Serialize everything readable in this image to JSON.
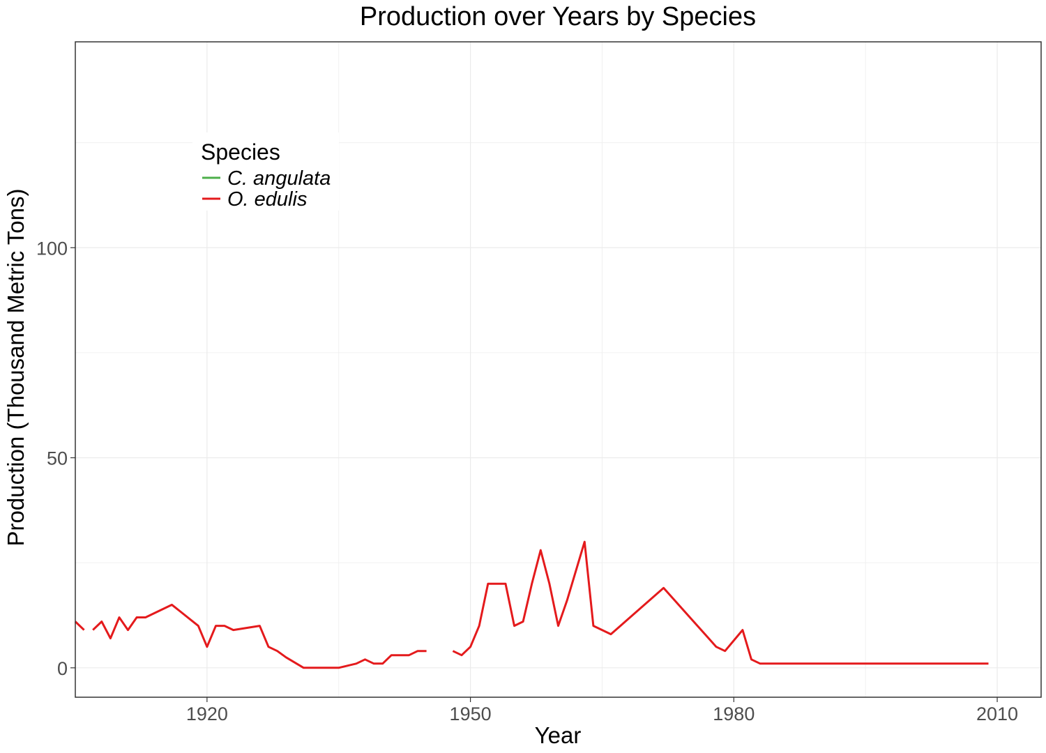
{
  "chart_data": {
    "type": "line",
    "title": "Production over Years by Species",
    "xlabel": "Year",
    "ylabel": "Production (Thousand Metric Tons)",
    "xlim": [
      1905,
      2015
    ],
    "ylim": [
      -7,
      149
    ],
    "x_ticks": [
      1920,
      1950,
      1980,
      2010
    ],
    "x_tick_labels": [
      "1920",
      "1950",
      "1980",
      "2010"
    ],
    "y_ticks": [
      0,
      50,
      100
    ],
    "y_tick_labels": [
      "0",
      "50",
      "100"
    ],
    "grid": true,
    "legend": {
      "title": "Species",
      "placement": "top-left",
      "entries": [
        {
          "label": "C. angulata",
          "color": "#4daf4a"
        },
        {
          "label": "O. edulis",
          "color": "#e41a1c"
        }
      ]
    },
    "series": [
      {
        "name": "C. angulata",
        "color": "#4daf4a",
        "segments": []
      },
      {
        "name": "O. edulis",
        "color": "#e41a1c",
        "segments": [
          [
            [
              1905,
              11
            ],
            [
              1906,
              9
            ]
          ],
          [
            [
              1907,
              9
            ],
            [
              1908,
              11
            ],
            [
              1909,
              7
            ],
            [
              1910,
              12
            ],
            [
              1911,
              9
            ],
            [
              1912,
              12
            ],
            [
              1913,
              12
            ],
            [
              1916,
              15
            ],
            [
              1919,
              10
            ],
            [
              1920,
              5
            ],
            [
              1921,
              10
            ],
            [
              1922,
              10
            ],
            [
              1923,
              9
            ],
            [
              1926,
              10
            ],
            [
              1927,
              5
            ],
            [
              1928,
              4
            ],
            [
              1929,
              2.5
            ],
            [
              1931,
              0
            ],
            [
              1935,
              0
            ],
            [
              1937,
              1
            ],
            [
              1938,
              2
            ],
            [
              1939,
              1
            ],
            [
              1940,
              1
            ],
            [
              1941,
              3
            ],
            [
              1943,
              3
            ],
            [
              1944,
              4
            ],
            [
              1945,
              4
            ]
          ],
          [
            [
              1948,
              4
            ],
            [
              1949,
              3
            ],
            [
              1950,
              5
            ],
            [
              1951,
              10
            ],
            [
              1952,
              20
            ],
            [
              1954,
              20
            ],
            [
              1955,
              10
            ],
            [
              1956,
              11
            ],
            [
              1957,
              20
            ],
            [
              1958,
              28
            ],
            [
              1959,
              20
            ],
            [
              1960,
              10
            ],
            [
              1961,
              16
            ],
            [
              1963,
              30
            ],
            [
              1964,
              10
            ],
            [
              1966,
              8
            ],
            [
              1972,
              19
            ],
            [
              1978,
              5
            ],
            [
              1979,
              4
            ],
            [
              1981,
              9
            ],
            [
              1982,
              2
            ],
            [
              1983,
              1
            ],
            [
              1985,
              1
            ],
            [
              2009,
              1
            ]
          ]
        ]
      }
    ]
  }
}
